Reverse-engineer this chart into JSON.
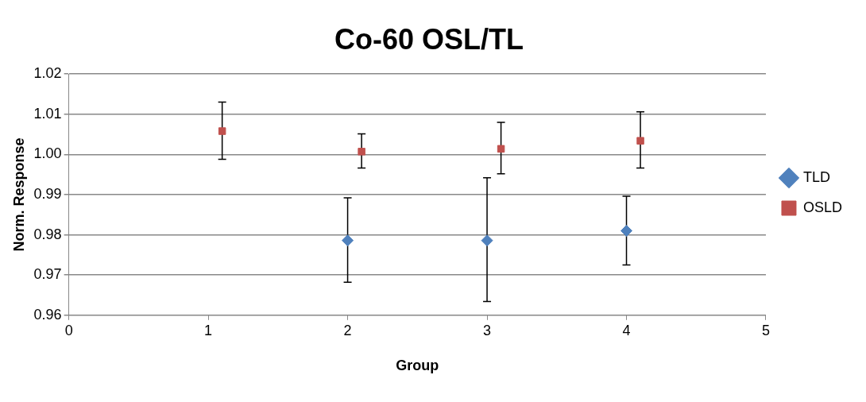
{
  "chart_data": {
    "type": "scatter",
    "title": "Co-60 OSL/TL",
    "xlabel": "Group",
    "ylabel": "Norm. Response",
    "xlim": [
      0,
      5
    ],
    "xticks": [
      0,
      1,
      2,
      3,
      4,
      5
    ],
    "ylim": [
      0.96,
      1.02
    ],
    "yticks": [
      0.96,
      0.97,
      0.98,
      0.99,
      {
        "value": 1,
        "label": "1.00"
      },
      1.01,
      1.02
    ],
    "grid": "y",
    "legend": "right",
    "series": [
      {
        "name": "TLD",
        "color": "#4f81bd",
        "marker": "diamond",
        "x": [
          2,
          3,
          4
        ],
        "values": [
          0.9786,
          0.9786,
          0.981
        ],
        "errors": [
          [
            0.9682,
            0.9892
          ],
          [
            0.9634,
            0.9942
          ],
          [
            0.9725,
            0.9896
          ]
        ]
      },
      {
        "name": "OSLD",
        "color": "#c0504d",
        "marker": "square",
        "x": [
          1.1,
          2.1,
          3.1,
          4.1
        ],
        "values": [
          1.0058,
          1.0007,
          1.0014,
          1.0034
        ],
        "errors": [
          [
            0.9988,
            1.013
          ],
          [
            0.9966,
            1.0051
          ],
          [
            0.9952,
            1.008
          ],
          [
            0.9966,
            1.0106
          ]
        ]
      }
    ]
  }
}
